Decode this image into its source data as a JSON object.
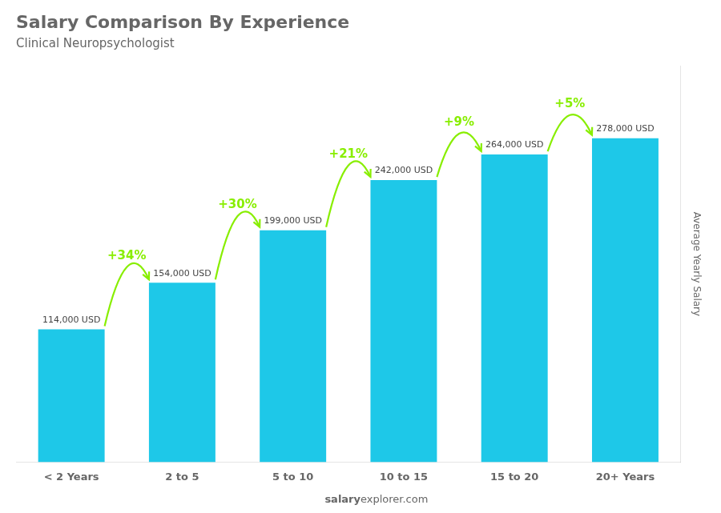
{
  "chart_data": {
    "type": "bar",
    "title": "Salary Comparison By Experience",
    "subtitle": "Clinical Neuropsychologist",
    "ylabel": "Average Yearly Salary",
    "categories": [
      "< 2 Years",
      "2 to 5",
      "5 to 10",
      "10 to 15",
      "15 to 20",
      "20+ Years"
    ],
    "values": [
      114000,
      154000,
      199000,
      242000,
      264000,
      278000
    ],
    "value_labels": [
      "114,000 USD",
      "154,000 USD",
      "199,000 USD",
      "242,000 USD",
      "264,000 USD",
      "278,000 USD"
    ],
    "data_labels": true,
    "color": "#1EC8E8",
    "ylim": [
      0,
      340000
    ],
    "tick_labels": "x",
    "grid": false,
    "annotations": [
      {
        "text": "+34%",
        "from": "< 2 Years",
        "to": "2 to 5",
        "color": "#88EE00"
      },
      {
        "text": "+30%",
        "from": "2 to 5",
        "to": "5 to 10",
        "color": "#88EE00"
      },
      {
        "text": "+21%",
        "from": "5 to 10",
        "to": "10 to 15",
        "color": "#88EE00"
      },
      {
        "text": "+9%",
        "from": "10 to 15",
        "to": "15 to 20",
        "color": "#88EE00"
      },
      {
        "text": "+5%",
        "from": "15 to 20",
        "to": "20+ Years",
        "color": "#88EE00"
      }
    ],
    "watermark": [
      "salary",
      "explorer.com"
    ]
  }
}
